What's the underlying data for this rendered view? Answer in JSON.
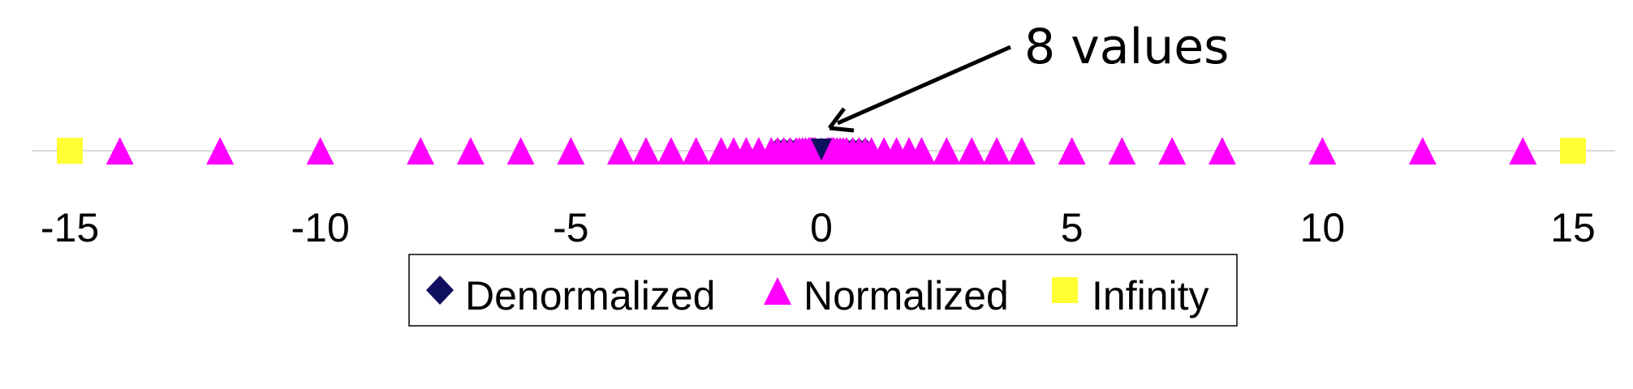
{
  "chart_data": {
    "type": "scatter",
    "xlim": [
      -15,
      15
    ],
    "xticks": [
      -15,
      -10,
      -5,
      0,
      5,
      10,
      15
    ],
    "xtick_labels": [
      "-15",
      "-10",
      "-5",
      "0",
      "5",
      "10",
      "15"
    ],
    "grid": false,
    "legend_placement": "bottom-center",
    "annotation": {
      "text": "8 values",
      "points_to": 0
    },
    "series": [
      {
        "name": "Denormalized",
        "marker": "diamond",
        "color": "#101060",
        "x": [
          -0.875,
          -0.75,
          -0.625,
          -0.5,
          -0.375,
          -0.25,
          -0.125,
          0,
          0.125,
          0.25,
          0.375,
          0.5,
          0.625,
          0.75,
          0.875
        ]
      },
      {
        "name": "Normalized",
        "marker": "triangle",
        "color": "#FF00FF",
        "x": [
          -14,
          -12,
          -10,
          -8,
          -7,
          -6,
          -5,
          -4,
          -3.5,
          -3,
          -2.5,
          -2,
          -1.75,
          -1.5,
          -1.25,
          -1,
          -0.875,
          -0.75,
          -0.625,
          -0.5,
          -0.4375,
          -0.375,
          -0.3125,
          -0.25,
          -0.21875,
          -0.1875,
          -0.15625,
          -0.125,
          0.125,
          0.15625,
          0.1875,
          0.21875,
          0.25,
          0.3125,
          0.375,
          0.4375,
          0.5,
          0.625,
          0.75,
          0.875,
          1,
          1.25,
          1.5,
          1.75,
          2,
          2.5,
          3,
          3.5,
          4,
          5,
          6,
          7,
          8,
          10,
          12,
          14
        ]
      },
      {
        "name": "Infinity",
        "marker": "square",
        "color": "#FFFF33",
        "x": [
          -15,
          15
        ]
      }
    ],
    "highlight_marker": {
      "marker": "triangle-down",
      "color": "#101060",
      "x": 0
    }
  }
}
